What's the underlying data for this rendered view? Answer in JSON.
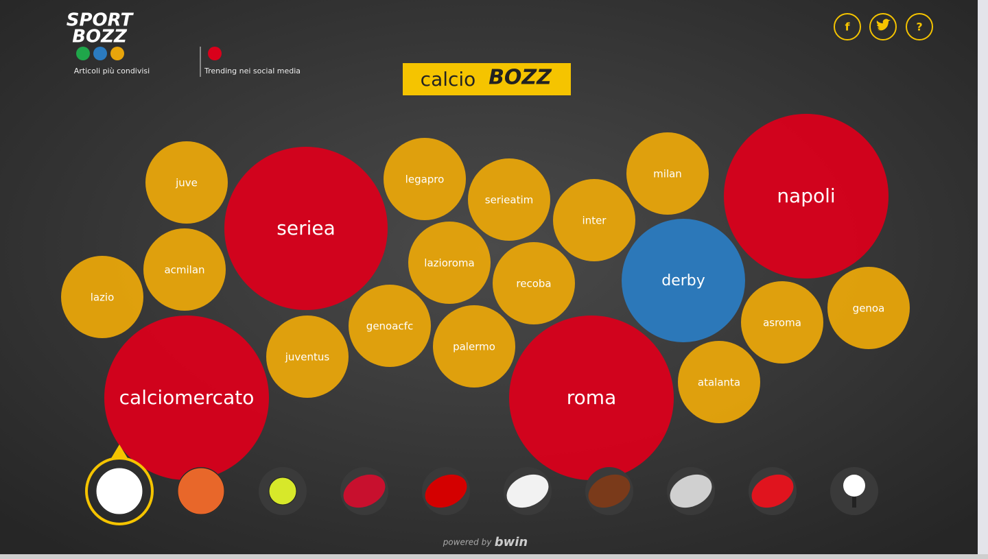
{
  "header": {
    "logo_top": "SPORT",
    "logo_bottom": "BOZZ",
    "legend": [
      {
        "label": "Articoli più condivisi",
        "colors": [
          "#1fa64a",
          "#2b7bc0",
          "#e8a50b"
        ]
      },
      {
        "label": "Trending nei social media",
        "colors": [
          "#d9001b"
        ]
      }
    ],
    "social": [
      "f",
      "?"
    ]
  },
  "title": {
    "text": "calcio",
    "brand": "BOZZ"
  },
  "bubbles": [
    {
      "label": "juve",
      "color": "#e8a50b"
    },
    {
      "label": "seriea",
      "color": "#d9001b"
    },
    {
      "label": "legapro",
      "color": "#e8a50b"
    },
    {
      "label": "serieatim",
      "color": "#e8a50b"
    },
    {
      "label": "milan",
      "color": "#e8a50b"
    },
    {
      "label": "napoli",
      "color": "#d9001b"
    },
    {
      "label": "inter",
      "color": "#e8a50b"
    },
    {
      "label": "lazioroma",
      "color": "#e8a50b"
    },
    {
      "label": "recoba",
      "color": "#e8a50b"
    },
    {
      "label": "derby",
      "color": "#2b7bc0"
    },
    {
      "label": "acmilan",
      "color": "#e8a50b"
    },
    {
      "label": "lazio",
      "color": "#e8a50b"
    },
    {
      "label": "genoa",
      "color": "#e8a50b"
    },
    {
      "label": "asroma",
      "color": "#e8a50b"
    },
    {
      "label": "genoacfc",
      "color": "#e8a50b"
    },
    {
      "label": "palermo",
      "color": "#e8a50b"
    },
    {
      "label": "juventus",
      "color": "#e8a50b"
    },
    {
      "label": "atalanta",
      "color": "#e8a50b"
    },
    {
      "label": "calciomercato",
      "color": "#d9001b"
    },
    {
      "label": "roma",
      "color": "#d9001b"
    }
  ],
  "footer": {
    "text": "powered by",
    "brand": "bwin"
  }
}
